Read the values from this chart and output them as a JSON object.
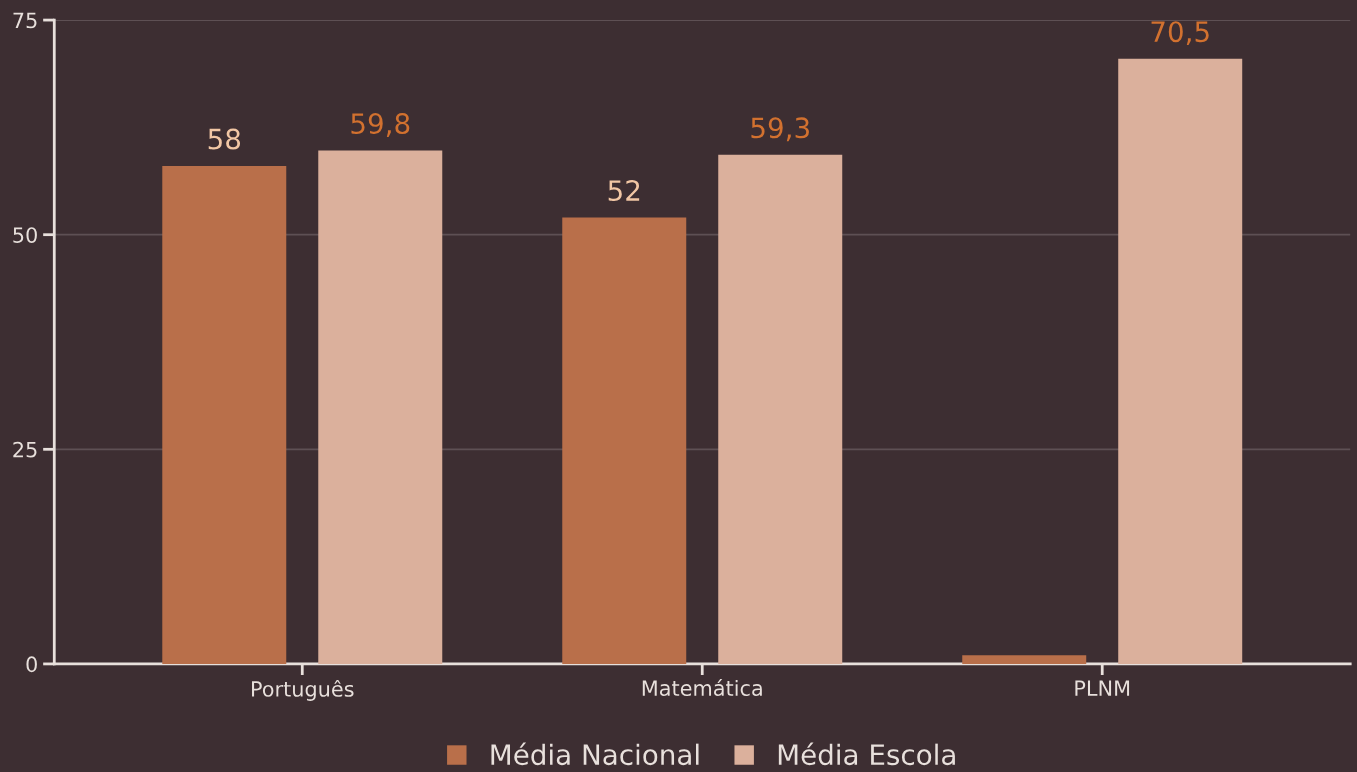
{
  "chart_data": {
    "type": "bar",
    "categories": [
      "Português",
      "Matemática",
      "PLNM"
    ],
    "series": [
      {
        "name": "Média Nacional",
        "color": "#b96f4a",
        "values": [
          58,
          52,
          1
        ],
        "value_labels": [
          "58",
          "52",
          null
        ]
      },
      {
        "name": "Média Escola",
        "color": "#dbb09c",
        "values": [
          59.8,
          59.3,
          70.5
        ],
        "value_labels": [
          "59,8",
          "59,3",
          "70,5"
        ]
      }
    ],
    "ylim": [
      0,
      75
    ],
    "yticks": [
      0,
      25,
      50,
      75
    ],
    "grid": "y",
    "legend": "bottom"
  }
}
